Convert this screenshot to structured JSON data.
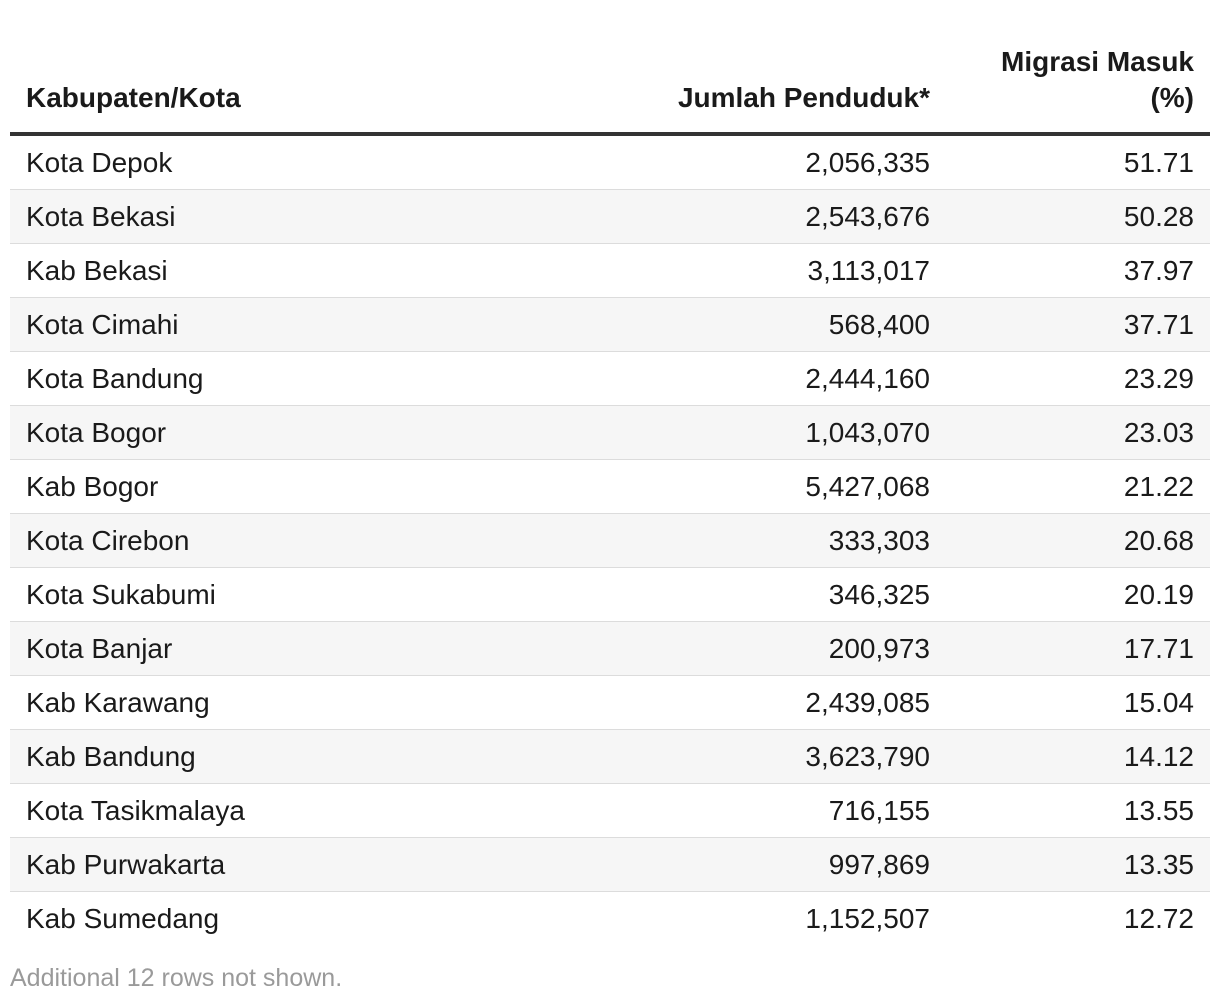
{
  "chart_data": {
    "type": "table",
    "columns": [
      "Kabupaten/Kota",
      "Jumlah Penduduk*",
      "Migrasi Masuk (%)"
    ],
    "rows": [
      {
        "name": "Kota Depok",
        "population": "2,056,335",
        "migration": "51.71"
      },
      {
        "name": "Kota Bekasi",
        "population": "2,543,676",
        "migration": "50.28"
      },
      {
        "name": "Kab Bekasi",
        "population": "3,113,017",
        "migration": "37.97"
      },
      {
        "name": "Kota Cimahi",
        "population": "568,400",
        "migration": "37.71"
      },
      {
        "name": "Kota Bandung",
        "population": "2,444,160",
        "migration": "23.29"
      },
      {
        "name": "Kota Bogor",
        "population": "1,043,070",
        "migration": "23.03"
      },
      {
        "name": "Kab Bogor",
        "population": "5,427,068",
        "migration": "21.22"
      },
      {
        "name": "Kota Cirebon",
        "population": "333,303",
        "migration": "20.68"
      },
      {
        "name": "Kota Sukabumi",
        "population": "346,325",
        "migration": "20.19"
      },
      {
        "name": "Kota Banjar",
        "population": "200,973",
        "migration": "17.71"
      },
      {
        "name": "Kab Karawang",
        "population": "2,439,085",
        "migration": "15.04"
      },
      {
        "name": "Kab Bandung",
        "population": "3,623,790",
        "migration": "14.12"
      },
      {
        "name": "Kota Tasikmalaya",
        "population": "716,155",
        "migration": "13.55"
      },
      {
        "name": "Kab Purwakarta",
        "population": "997,869",
        "migration": "13.35"
      },
      {
        "name": "Kab Sumedang",
        "population": "1,152,507",
        "migration": "12.72"
      }
    ],
    "footnote": "Additional 12 rows not shown."
  },
  "table": {
    "header": {
      "name": "Kabupaten/Kota",
      "population": "Jumlah Penduduk*",
      "migration_line1": "Migrasi Masuk",
      "migration_line2": "(%)"
    }
  },
  "colors": {
    "header_rule": "#333333",
    "row_divider": "#dcdcdc",
    "row_stripe": "#f6f6f6",
    "footnote_text": "#9a9a9a"
  }
}
